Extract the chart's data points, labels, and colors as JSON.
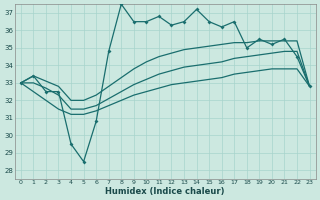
{
  "xlabel": "Humidex (Indice chaleur)",
  "xlim": [
    -0.5,
    23.5
  ],
  "ylim": [
    27.5,
    37.5
  ],
  "yticks": [
    28,
    29,
    30,
    31,
    32,
    33,
    34,
    35,
    36,
    37
  ],
  "xticks": [
    0,
    1,
    2,
    3,
    4,
    5,
    6,
    7,
    8,
    9,
    10,
    11,
    12,
    13,
    14,
    15,
    16,
    17,
    18,
    19,
    20,
    21,
    22,
    23
  ],
  "background_color": "#cce8e0",
  "grid_color": "#a8d4cc",
  "line_color": "#1a6e6e",
  "humidex": [
    33.0,
    33.4,
    32.5,
    32.5,
    29.5,
    28.5,
    30.8,
    34.8,
    37.5,
    36.5,
    36.5,
    36.8,
    36.3,
    36.5,
    37.2,
    36.5,
    36.2,
    36.5,
    35.0,
    35.5,
    35.2,
    35.5,
    34.5,
    32.8
  ],
  "upper": [
    33.0,
    33.4,
    33.1,
    32.8,
    32.0,
    32.0,
    32.3,
    32.8,
    33.3,
    33.8,
    34.2,
    34.5,
    34.7,
    34.9,
    35.0,
    35.1,
    35.2,
    35.3,
    35.3,
    35.4,
    35.4,
    35.4,
    35.4,
    32.8
  ],
  "middle": [
    33.0,
    33.0,
    32.7,
    32.3,
    31.5,
    31.5,
    31.7,
    32.1,
    32.5,
    32.9,
    33.2,
    33.5,
    33.7,
    33.9,
    34.0,
    34.1,
    34.2,
    34.4,
    34.5,
    34.6,
    34.7,
    34.8,
    34.8,
    32.8
  ],
  "lower": [
    33.0,
    32.5,
    32.0,
    31.5,
    31.2,
    31.2,
    31.4,
    31.7,
    32.0,
    32.3,
    32.5,
    32.7,
    32.9,
    33.0,
    33.1,
    33.2,
    33.3,
    33.5,
    33.6,
    33.7,
    33.8,
    33.8,
    33.8,
    32.8
  ]
}
